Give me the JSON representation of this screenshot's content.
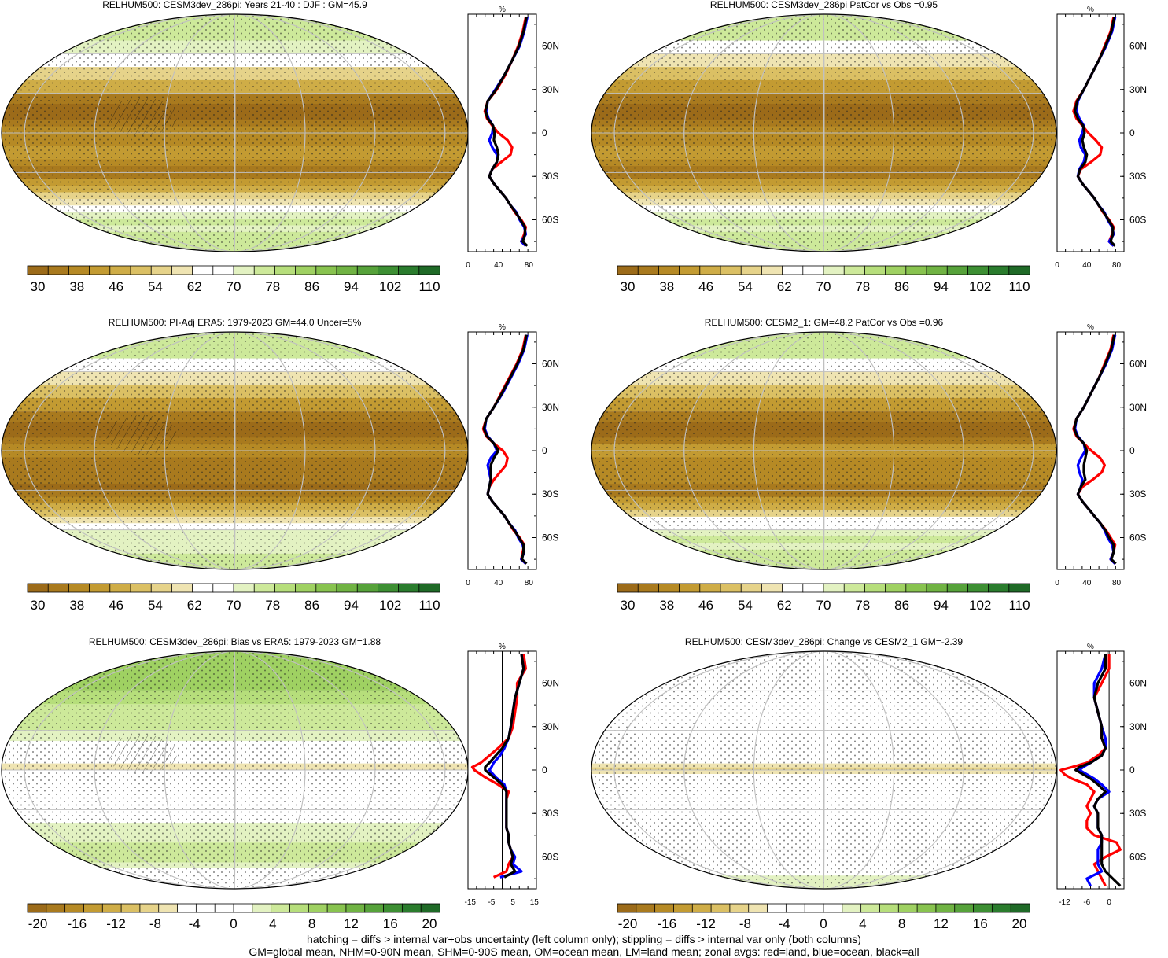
{
  "colors": {
    "land": "#ff0000",
    "ocean": "#0000ff",
    "all": "#000000",
    "missing": "#c8c8c8",
    "graticule": "#c0c0c0"
  },
  "units": "%",
  "absolute_colorbar": {
    "palette": [
      "#9c6b19",
      "#a97a1e",
      "#b68a25",
      "#c39b32",
      "#cfad47",
      "#dbc064",
      "#e6d38a",
      "#efe4b2",
      "#ffffff",
      "#ffffff",
      "#e3f2c2",
      "#cde99a",
      "#b6de7b",
      "#9fd162",
      "#88c34f",
      "#70b343",
      "#56a23a",
      "#3d8f33",
      "#2a7c2d",
      "#1f6a27"
    ],
    "labels": [
      "30",
      "38",
      "46",
      "54",
      "62",
      "70",
      "78",
      "86",
      "94",
      "102",
      "110"
    ]
  },
  "diff_colorbar": {
    "palette": [
      "#9c6b19",
      "#a97a1e",
      "#b68a25",
      "#c39b32",
      "#cfad47",
      "#dbc064",
      "#e6d38a",
      "#efe4b2",
      "#ffffff",
      "#ffffff",
      "#ffffff",
      "#ffffff",
      "#e3f2c2",
      "#cde99a",
      "#b6de7b",
      "#9fd162",
      "#88c34f",
      "#70b343",
      "#56a23a",
      "#3d8f33",
      "#2a7c2d",
      "#1f6a27"
    ],
    "labels": [
      "-20",
      "-16",
      "-12",
      "-8",
      "-4",
      "0",
      "4",
      "8",
      "12",
      "16",
      "20"
    ]
  },
  "chart_data": [
    {
      "type": "heatmap",
      "title": "RELHUM500: CESM3dev_286pi: Years 21-40 : DJF : GM=45.9",
      "colorbar": "absolute_colorbar",
      "hatched": true,
      "zonal_avg": {
        "type": "line",
        "xlabel": "%",
        "xlim": [
          0,
          90
        ],
        "x_ticks": [
          "0",
          "40",
          "80"
        ],
        "lat_ticks": [
          "60N",
          "30N",
          "0",
          "30S",
          "60S"
        ],
        "lat": [
          80,
          70,
          60,
          50,
          40,
          30,
          22,
          15,
          10,
          5,
          0,
          -5,
          -10,
          -15,
          -20,
          -25,
          -30,
          -35,
          -40,
          -45,
          -50,
          -55,
          -60,
          -65,
          -70,
          -75,
          -78
        ],
        "series": [
          {
            "name": "land",
            "values": [
              76,
              72,
              66,
              58,
              49,
              38,
              26,
              22,
              25,
              32,
              40,
              52,
              58,
              56,
              44,
              32,
              28,
              34,
              42,
              50,
              56,
              62,
              70,
              76,
              74,
              70,
              76
            ]
          },
          {
            "name": "ocean",
            "values": [
              78,
              74,
              68,
              58,
              48,
              36,
              26,
              24,
              27,
              33,
              32,
              28,
              32,
              38,
              38,
              32,
              28,
              34,
              42,
              50,
              56,
              64,
              68,
              74,
              76,
              70,
              76
            ]
          },
          {
            "name": "all",
            "values": [
              77,
              73,
              67,
              58,
              48,
              37,
              26,
              23,
              26,
              33,
              35,
              34,
              38,
              40,
              38,
              32,
              28,
              34,
              42,
              50,
              56,
              63,
              69,
              75,
              75,
              72,
              78
            ]
          }
        ]
      }
    },
    {
      "type": "heatmap",
      "title": "RELHUM500: CESM3dev_286pi PatCor vs Obs =0.95",
      "colorbar": "absolute_colorbar",
      "hatched": false,
      "zonal_avg": {
        "type": "line",
        "xlabel": "%",
        "xlim": [
          0,
          90
        ],
        "x_ticks": [
          "0",
          "40",
          "80"
        ],
        "lat_ticks": [
          "60N",
          "30N",
          "0",
          "30S",
          "60S"
        ],
        "lat": [
          80,
          70,
          60,
          50,
          40,
          30,
          22,
          15,
          10,
          5,
          0,
          -5,
          -10,
          -15,
          -20,
          -25,
          -30,
          -35,
          -40,
          -45,
          -50,
          -55,
          -60,
          -65,
          -70,
          -75,
          -78
        ],
        "series": [
          {
            "name": "land",
            "values": [
              76,
              72,
              64,
              56,
              46,
              36,
              26,
              22,
              26,
              34,
              42,
              52,
              60,
              58,
              46,
              32,
              28,
              34,
              42,
              50,
              56,
              62,
              70,
              76,
              74,
              70,
              76
            ]
          },
          {
            "name": "ocean",
            "values": [
              78,
              74,
              66,
              56,
              46,
              36,
              28,
              26,
              30,
              36,
              34,
              30,
              32,
              38,
              36,
              30,
              28,
              34,
              42,
              50,
              56,
              64,
              68,
              74,
              76,
              70,
              76
            ]
          },
          {
            "name": "all",
            "values": [
              77,
              73,
              65,
              56,
              46,
              36,
              27,
              24,
              28,
              35,
              37,
              34,
              36,
              40,
              38,
              31,
              28,
              34,
              42,
              50,
              56,
              63,
              69,
              75,
              75,
              72,
              78
            ]
          }
        ]
      }
    },
    {
      "type": "heatmap",
      "title": "RELHUM500: PI-Adj ERA5: 1979-2023 GM=44.0 Uncer=5%",
      "colorbar": "absolute_colorbar",
      "hatched": true,
      "zonal_avg": {
        "type": "line",
        "xlabel": "%",
        "xlim": [
          0,
          90
        ],
        "x_ticks": [
          "0",
          "40",
          "80"
        ],
        "lat_ticks": [
          "60N",
          "30N",
          "0",
          "30S",
          "60S"
        ],
        "lat": [
          80,
          70,
          60,
          50,
          40,
          30,
          22,
          15,
          10,
          5,
          0,
          -5,
          -10,
          -15,
          -20,
          -25,
          -30,
          -35,
          -40,
          -45,
          -50,
          -55,
          -60,
          -65,
          -70,
          -75,
          -78
        ],
        "series": [
          {
            "name": "land",
            "values": [
              76,
              72,
              64,
              54,
              44,
              34,
              24,
              20,
              24,
              34,
              46,
              52,
              50,
              42,
              34,
              28,
              26,
              32,
              40,
              48,
              54,
              60,
              68,
              74,
              72,
              70,
              76
            ]
          },
          {
            "name": "ocean",
            "values": [
              78,
              74,
              66,
              56,
              46,
              34,
              24,
              22,
              26,
              34,
              38,
              30,
              26,
              28,
              30,
              28,
              26,
              32,
              40,
              48,
              54,
              62,
              66,
              72,
              74,
              70,
              76
            ]
          },
          {
            "name": "all",
            "values": [
              77,
              73,
              65,
              55,
              45,
              34,
              24,
              21,
              25,
              34,
              40,
              34,
              30,
              30,
              30,
              28,
              26,
              32,
              40,
              48,
              54,
              61,
              67,
              73,
              73,
              71,
              77
            ]
          }
        ]
      }
    },
    {
      "type": "heatmap",
      "title": "RELHUM500: CESM2_1: GM=48.2 PatCor vs Obs =0.96",
      "colorbar": "absolute_colorbar",
      "hatched": false,
      "zonal_avg": {
        "type": "line",
        "xlabel": "%",
        "xlim": [
          0,
          90
        ],
        "x_ticks": [
          "0",
          "40",
          "80"
        ],
        "lat_ticks": [
          "60N",
          "30N",
          "0",
          "30S",
          "60S"
        ],
        "lat": [
          80,
          70,
          60,
          50,
          40,
          30,
          22,
          15,
          10,
          5,
          0,
          -5,
          -10,
          -15,
          -20,
          -25,
          -30,
          -35,
          -40,
          -45,
          -50,
          -55,
          -60,
          -65,
          -70,
          -75,
          -78
        ],
        "series": [
          {
            "name": "land",
            "values": [
              76,
              72,
              64,
              56,
              46,
              36,
              26,
              22,
              26,
              36,
              46,
              58,
              64,
              60,
              48,
              34,
              28,
              34,
              42,
              50,
              58,
              66,
              72,
              78,
              76,
              72,
              78
            ]
          },
          {
            "name": "ocean",
            "values": [
              78,
              74,
              66,
              56,
              46,
              36,
              26,
              24,
              28,
              36,
              38,
              32,
              28,
              30,
              34,
              32,
              28,
              34,
              42,
              50,
              58,
              64,
              68,
              74,
              76,
              72,
              78
            ]
          },
          {
            "name": "all",
            "values": [
              77,
              73,
              65,
              56,
              46,
              36,
              26,
              23,
              27,
              36,
              40,
              38,
              36,
              36,
              38,
              32,
              28,
              34,
              42,
              50,
              58,
              65,
              70,
              76,
              76,
              73,
              79
            ]
          }
        ]
      }
    },
    {
      "type": "heatmap",
      "title": "RELHUM500: CESM3dev_286pi: Bias vs ERA5: 1979-2023 GM=1.88",
      "colorbar": "diff_colorbar",
      "hatched": true,
      "zonal_avg": {
        "type": "line",
        "xlabel": "%",
        "xlim": [
          -16,
          16
        ],
        "x_ticks": [
          "-15",
          "-5",
          "5",
          "15"
        ],
        "zero_line": true,
        "lat_ticks": [
          "60N",
          "30N",
          "0",
          "30S",
          "60S"
        ],
        "lat": [
          80,
          70,
          60,
          50,
          40,
          30,
          22,
          15,
          10,
          5,
          2,
          0,
          -5,
          -10,
          -15,
          -20,
          -25,
          -30,
          -35,
          -40,
          -45,
          -50,
          -55,
          -60,
          -65,
          -70,
          -74
        ],
        "series": [
          {
            "name": "land",
            "values": [
              10,
              11,
              7,
              7,
              6,
              5,
              3,
              -2,
              -6,
              -10,
              -14,
              -13,
              -8,
              -2,
              3,
              2,
              2,
              2,
              2,
              2,
              3,
              3,
              4,
              5,
              3,
              2,
              -4
            ]
          },
          {
            "name": "ocean",
            "values": [
              9,
              10,
              8,
              6,
              5,
              4,
              3,
              1,
              -1,
              -4,
              -5,
              -6,
              -3,
              1,
              2,
              2,
              2,
              2,
              2,
              2,
              3,
              3,
              4,
              6,
              5,
              9,
              -1
            ]
          },
          {
            "name": "all",
            "values": [
              9,
              10,
              8,
              6,
              5,
              4,
              3,
              0,
              -3,
              -6,
              -8,
              -8,
              -4,
              0,
              2,
              2,
              2,
              2,
              2,
              2,
              3,
              3,
              4,
              5,
              4,
              6,
              1
            ]
          }
        ]
      }
    },
    {
      "type": "heatmap",
      "title": "RELHUM500: CESM3dev_286pi: Change vs CESM2_1 GM=-2.39",
      "colorbar": "diff_colorbar",
      "hatched": false,
      "zonal_avg": {
        "type": "line",
        "xlabel": "%",
        "xlim": [
          -14,
          4
        ],
        "x_ticks": [
          "-12",
          "-6",
          "0"
        ],
        "zero_line": true,
        "lat_ticks": [
          "60N",
          "30N",
          "0",
          "30S",
          "60S"
        ],
        "lat": [
          80,
          70,
          60,
          50,
          40,
          30,
          22,
          15,
          10,
          5,
          2,
          0,
          -3,
          -6,
          -10,
          -15,
          -20,
          -25,
          -30,
          -35,
          -40,
          -45,
          -50,
          -55,
          -60,
          -65,
          -70,
          -75,
          -80
        ],
        "series": [
          {
            "name": "land",
            "values": [
              0,
              0,
              -2,
              -4,
              -3,
              -2,
              -2,
              -1,
              -3,
              -6,
              -10,
              -13,
              -12,
              -10,
              -6,
              -4,
              -5,
              -6,
              -5,
              -6,
              -6,
              -4,
              2,
              3,
              -1,
              -4,
              -3,
              -2,
              -1
            ]
          },
          {
            "name": "ocean",
            "values": [
              -1,
              -2,
              -4,
              -4,
              -3,
              -2,
              -1,
              -1,
              -2,
              -5,
              -7,
              -8,
              -6,
              -4,
              -2,
              0,
              -3,
              -4,
              -3,
              -3,
              -3,
              -2,
              -2,
              -3,
              -3,
              -3,
              -2,
              -6,
              -5
            ]
          },
          {
            "name": "all",
            "values": [
              -1,
              -1,
              -3,
              -4,
              -3,
              -2,
              -2,
              -1,
              -2,
              -5,
              -8,
              -9,
              -7,
              -5,
              -3,
              -1,
              -3,
              -4,
              -3,
              -3,
              -3,
              -2,
              -2,
              -2,
              -2,
              -2,
              -1,
              1,
              3
            ]
          }
        ]
      }
    }
  ],
  "footnote": {
    "line1": "hatching = diffs > internal var+obs uncertainty (left column only); stippling = diffs > internal var only (both columns)",
    "line2": "GM=global mean, NHM=0-90N mean, SHM=0-90S mean, OM=ocean mean, LM=land mean; zonal avgs: red=land, blue=ocean, black=all"
  }
}
